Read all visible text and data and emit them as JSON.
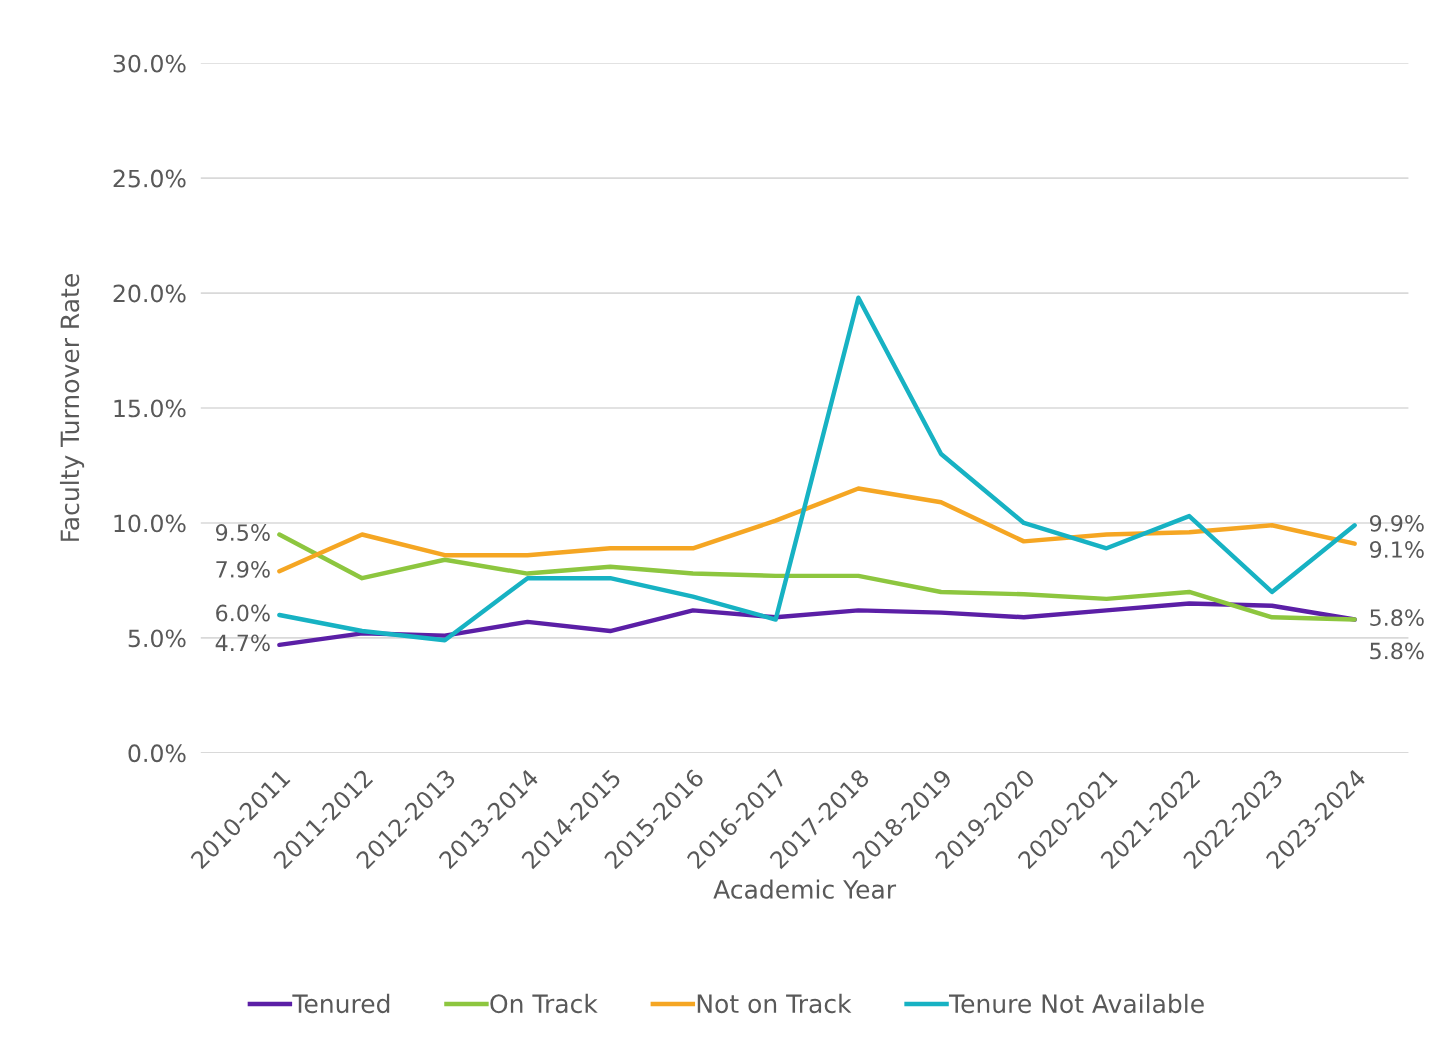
{
  "chart_data": {
    "type": "line",
    "xlabel": "Academic Year",
    "ylabel": "Faculty Turnover Rate",
    "categories": [
      "2010-2011",
      "2011-2012",
      "2012-2013",
      "2013-2014",
      "2014-2015",
      "2015-2016",
      "2016-2017",
      "2017-2018",
      "2018-2019",
      "2019-2020",
      "2020-2021",
      "2021-2022",
      "2022-2023",
      "2023-2024"
    ],
    "series": [
      {
        "name": "Tenured",
        "color": "#5b1fa6",
        "values": [
          4.7,
          5.2,
          5.1,
          5.7,
          5.3,
          6.2,
          5.9,
          6.2,
          6.1,
          5.9,
          6.2,
          6.5,
          6.4,
          5.8
        ],
        "value_labels": [
          "4.7%",
          null,
          null,
          null,
          null,
          null,
          null,
          null,
          null,
          null,
          null,
          null,
          null,
          "5.8%"
        ]
      },
      {
        "name": "On Track",
        "color": "#8dc63f",
        "values": [
          9.5,
          7.6,
          8.4,
          7.8,
          8.1,
          7.8,
          7.7,
          7.7,
          7.0,
          6.9,
          6.7,
          7.0,
          5.9,
          5.8
        ],
        "value_labels": [
          "9.5%",
          null,
          null,
          null,
          null,
          null,
          null,
          null,
          null,
          null,
          null,
          null,
          null,
          "5.8%"
        ]
      },
      {
        "name": "Not on Track",
        "color": "#f5a623",
        "values": [
          7.9,
          9.5,
          8.6,
          8.6,
          8.9,
          8.9,
          10.1,
          11.5,
          10.9,
          9.2,
          9.5,
          9.6,
          9.9,
          9.1
        ],
        "value_labels": [
          "7.9%",
          null,
          null,
          null,
          null,
          null,
          null,
          null,
          null,
          null,
          null,
          null,
          null,
          "9.1%"
        ]
      },
      {
        "name": "Tenure Not Available",
        "color": "#17b2c3",
        "values": [
          6.0,
          5.3,
          4.9,
          7.6,
          7.6,
          6.8,
          5.8,
          19.8,
          13.0,
          10.0,
          8.9,
          10.3,
          7.0,
          9.9
        ],
        "value_labels": [
          "6.0%",
          null,
          null,
          null,
          null,
          null,
          null,
          null,
          null,
          null,
          null,
          null,
          null,
          "9.9%"
        ]
      }
    ],
    "ylim": [
      0,
      30
    ],
    "yticks": [
      {
        "value": 0,
        "label": "0.0%"
      },
      {
        "value": 5,
        "label": "5.0%"
      },
      {
        "value": 10,
        "label": "10.0%"
      },
      {
        "value": 15,
        "label": "15.0%"
      },
      {
        "value": 20,
        "label": "20.0%"
      },
      {
        "value": 25,
        "label": "25.0%"
      },
      {
        "value": 30,
        "label": "30.0%"
      }
    ],
    "grid": "y",
    "legend": "bottom",
    "marker": "none",
    "line_style": "solid"
  }
}
